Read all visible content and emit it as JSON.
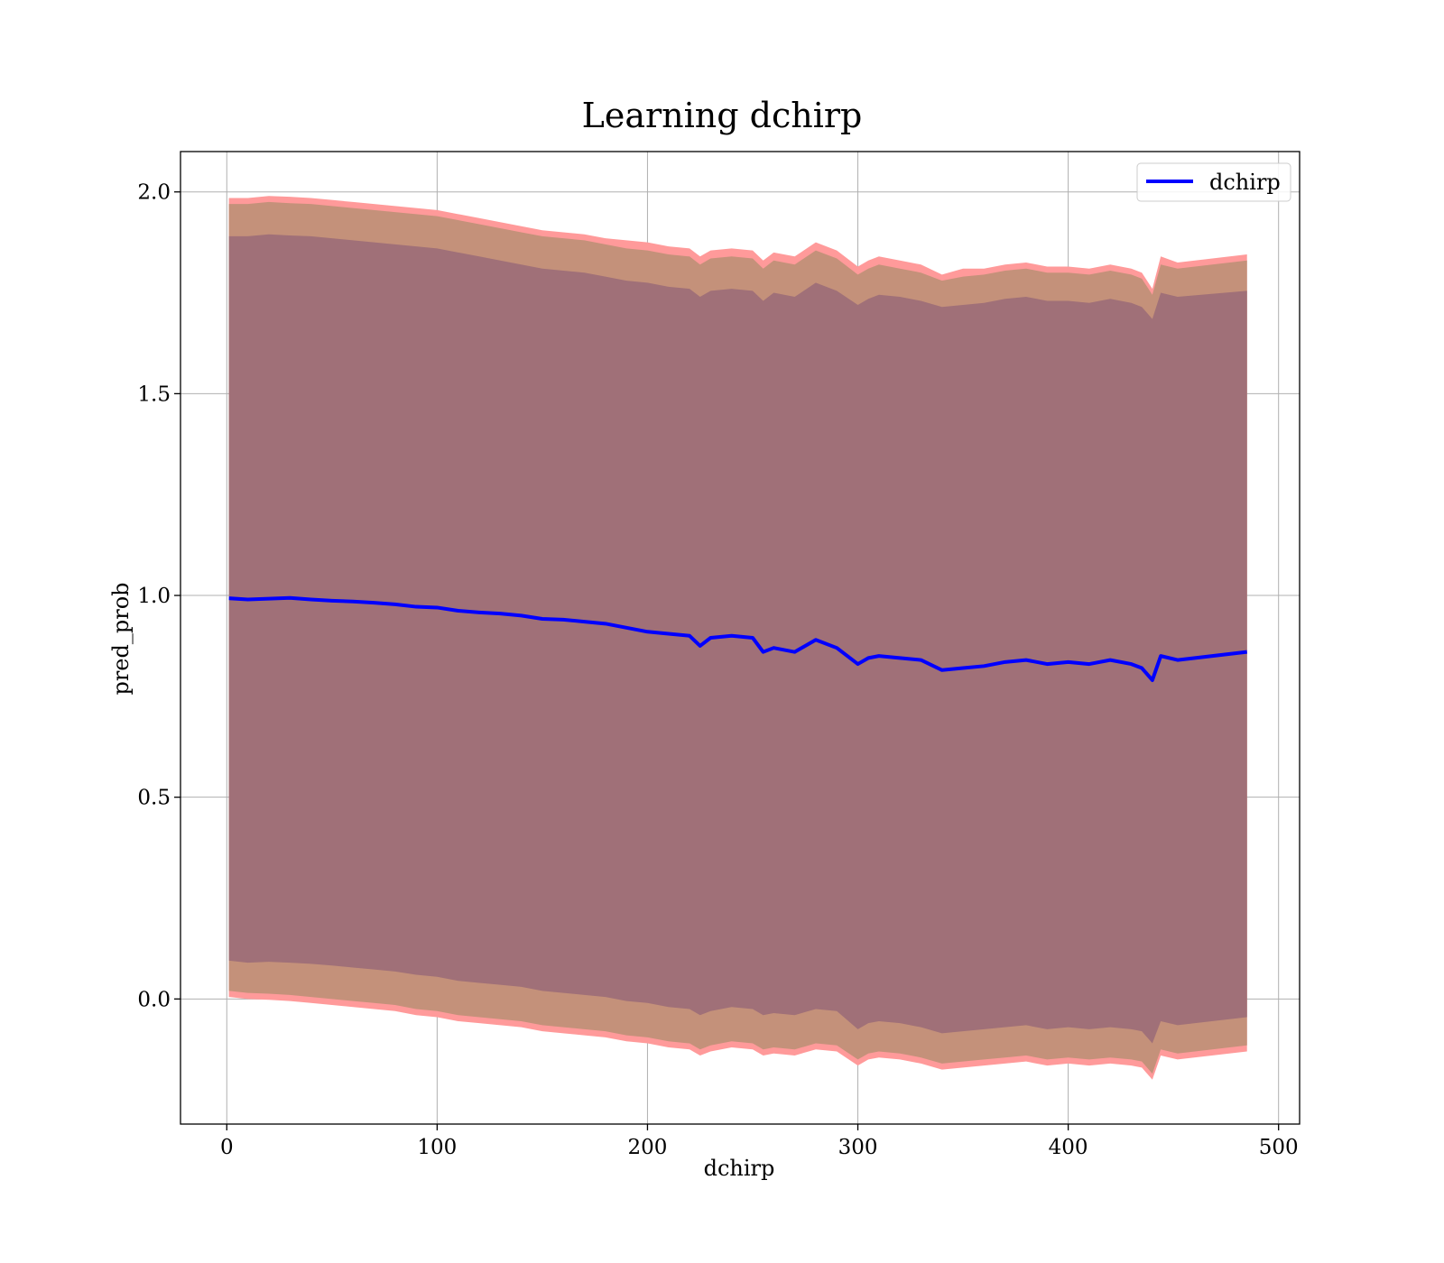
{
  "chart_data": {
    "type": "area",
    "title": "Learning dchirp",
    "xlabel": "dchirp",
    "ylabel": "pred_prob",
    "xlim": [
      -22,
      510
    ],
    "ylim": [
      -0.31,
      2.1
    ],
    "x_ticks": [
      0,
      100,
      200,
      300,
      400,
      500
    ],
    "x_tick_labels": [
      "0",
      "100",
      "200",
      "300",
      "400",
      "500"
    ],
    "y_ticks": [
      0.0,
      0.5,
      1.0,
      1.5,
      2.0
    ],
    "y_tick_labels": [
      "0.0",
      "0.5",
      "1.0",
      "1.5",
      "2.0"
    ],
    "grid": true,
    "legend": {
      "position": "top-right",
      "entries": [
        "dchirp"
      ]
    },
    "colors": {
      "mean_line": "#0000ff",
      "outer_band": "#ff9a9a",
      "middle_band": "#c4917a",
      "inner_band": "#a07078"
    },
    "x": [
      1,
      10,
      20,
      30,
      40,
      50,
      60,
      70,
      80,
      90,
      100,
      110,
      120,
      130,
      140,
      150,
      160,
      170,
      180,
      190,
      200,
      210,
      220,
      225,
      230,
      240,
      250,
      255,
      260,
      270,
      280,
      290,
      300,
      305,
      310,
      320,
      330,
      340,
      350,
      360,
      370,
      380,
      390,
      400,
      410,
      420,
      430,
      435,
      440,
      444,
      452,
      485
    ],
    "series": [
      {
        "name": "dchirp",
        "role": "mean",
        "values": [
          0.993,
          0.99,
          0.992,
          0.994,
          0.99,
          0.987,
          0.985,
          0.982,
          0.978,
          0.972,
          0.97,
          0.962,
          0.958,
          0.955,
          0.95,
          0.942,
          0.94,
          0.935,
          0.93,
          0.92,
          0.91,
          0.905,
          0.9,
          0.875,
          0.895,
          0.9,
          0.895,
          0.86,
          0.87,
          0.86,
          0.89,
          0.87,
          0.83,
          0.845,
          0.85,
          0.845,
          0.84,
          0.815,
          0.82,
          0.825,
          0.835,
          0.84,
          0.83,
          0.835,
          0.83,
          0.84,
          0.83,
          0.82,
          0.79,
          0.85,
          0.84,
          0.86
        ]
      }
    ],
    "bands": {
      "outer": {
        "upper": [
          1.985,
          1.985,
          1.99,
          1.988,
          1.985,
          1.98,
          1.975,
          1.97,
          1.965,
          1.96,
          1.955,
          1.945,
          1.935,
          1.925,
          1.915,
          1.905,
          1.9,
          1.895,
          1.885,
          1.88,
          1.875,
          1.865,
          1.86,
          1.84,
          1.855,
          1.86,
          1.855,
          1.83,
          1.85,
          1.84,
          1.875,
          1.855,
          1.815,
          1.83,
          1.84,
          1.83,
          1.82,
          1.795,
          1.81,
          1.81,
          1.82,
          1.825,
          1.815,
          1.815,
          1.81,
          1.82,
          1.81,
          1.8,
          1.76,
          1.84,
          1.825,
          1.845
        ],
        "lower": [
          0.005,
          0.0,
          -0.002,
          -0.005,
          -0.01,
          -0.015,
          -0.02,
          -0.025,
          -0.03,
          -0.04,
          -0.045,
          -0.055,
          -0.06,
          -0.065,
          -0.07,
          -0.08,
          -0.085,
          -0.09,
          -0.095,
          -0.105,
          -0.11,
          -0.12,
          -0.125,
          -0.14,
          -0.13,
          -0.12,
          -0.125,
          -0.14,
          -0.135,
          -0.14,
          -0.125,
          -0.13,
          -0.165,
          -0.15,
          -0.145,
          -0.15,
          -0.16,
          -0.175,
          -0.17,
          -0.165,
          -0.16,
          -0.155,
          -0.165,
          -0.16,
          -0.165,
          -0.16,
          -0.165,
          -0.17,
          -0.2,
          -0.14,
          -0.15,
          -0.13
        ]
      },
      "middle": {
        "upper": [
          1.97,
          1.97,
          1.975,
          1.972,
          1.97,
          1.965,
          1.96,
          1.955,
          1.95,
          1.945,
          1.94,
          1.93,
          1.92,
          1.91,
          1.9,
          1.89,
          1.885,
          1.88,
          1.87,
          1.86,
          1.855,
          1.845,
          1.84,
          1.82,
          1.835,
          1.84,
          1.835,
          1.81,
          1.83,
          1.82,
          1.855,
          1.835,
          1.795,
          1.81,
          1.82,
          1.81,
          1.8,
          1.78,
          1.79,
          1.795,
          1.805,
          1.81,
          1.8,
          1.8,
          1.795,
          1.805,
          1.795,
          1.785,
          1.745,
          1.82,
          1.81,
          1.83
        ],
        "lower": [
          0.02,
          0.015,
          0.013,
          0.01,
          0.005,
          0.0,
          -0.005,
          -0.01,
          -0.015,
          -0.025,
          -0.03,
          -0.04,
          -0.045,
          -0.05,
          -0.055,
          -0.065,
          -0.07,
          -0.075,
          -0.08,
          -0.09,
          -0.095,
          -0.105,
          -0.11,
          -0.125,
          -0.115,
          -0.105,
          -0.11,
          -0.125,
          -0.12,
          -0.125,
          -0.11,
          -0.115,
          -0.15,
          -0.135,
          -0.13,
          -0.135,
          -0.145,
          -0.16,
          -0.155,
          -0.15,
          -0.145,
          -0.14,
          -0.15,
          -0.145,
          -0.15,
          -0.145,
          -0.15,
          -0.155,
          -0.185,
          -0.125,
          -0.135,
          -0.115
        ]
      },
      "inner": {
        "upper": [
          1.89,
          1.89,
          1.895,
          1.892,
          1.89,
          1.885,
          1.88,
          1.875,
          1.87,
          1.865,
          1.86,
          1.85,
          1.84,
          1.83,
          1.82,
          1.81,
          1.805,
          1.8,
          1.79,
          1.78,
          1.775,
          1.765,
          1.76,
          1.74,
          1.755,
          1.76,
          1.755,
          1.73,
          1.75,
          1.74,
          1.775,
          1.755,
          1.72,
          1.735,
          1.745,
          1.74,
          1.73,
          1.715,
          1.72,
          1.725,
          1.735,
          1.74,
          1.73,
          1.73,
          1.725,
          1.735,
          1.725,
          1.715,
          1.685,
          1.75,
          1.74,
          1.755
        ],
        "lower": [
          0.095,
          0.09,
          0.092,
          0.09,
          0.087,
          0.083,
          0.078,
          0.073,
          0.068,
          0.06,
          0.055,
          0.045,
          0.04,
          0.035,
          0.03,
          0.02,
          0.015,
          0.01,
          0.005,
          -0.005,
          -0.01,
          -0.02,
          -0.025,
          -0.04,
          -0.03,
          -0.02,
          -0.025,
          -0.04,
          -0.035,
          -0.04,
          -0.025,
          -0.03,
          -0.075,
          -0.06,
          -0.055,
          -0.06,
          -0.07,
          -0.085,
          -0.08,
          -0.075,
          -0.07,
          -0.065,
          -0.075,
          -0.07,
          -0.075,
          -0.07,
          -0.075,
          -0.08,
          -0.11,
          -0.055,
          -0.065,
          -0.045
        ]
      }
    }
  }
}
